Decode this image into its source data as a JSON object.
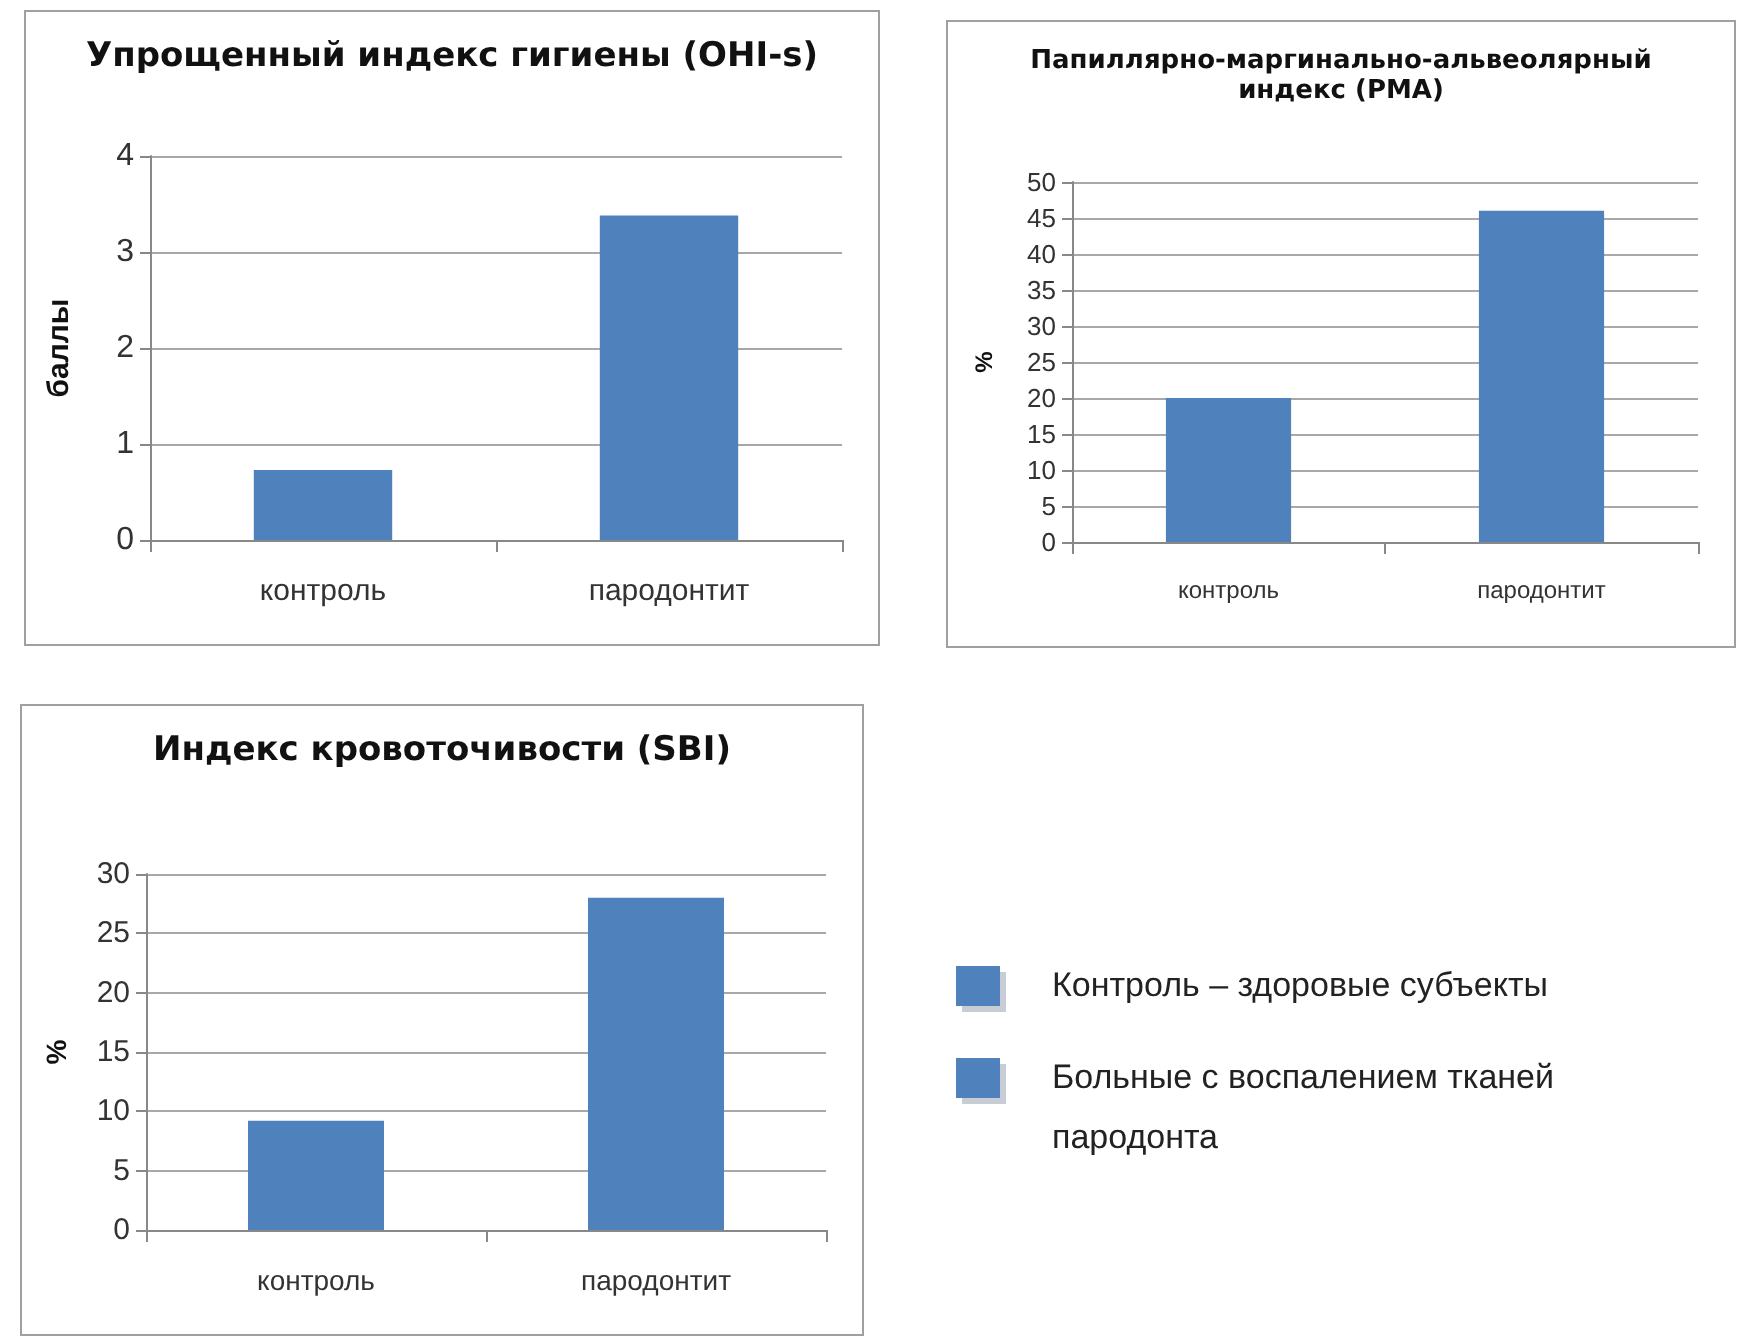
{
  "chart_data": [
    {
      "type": "bar",
      "title": "Упрощенный индекс гигиены (OHI-s)",
      "ylabel": "баллы",
      "categories": [
        "контроль",
        "пародонтит"
      ],
      "values": [
        0.73,
        3.38
      ],
      "color": "#4f81bd",
      "ylim": [
        0,
        4
      ],
      "yticks": [
        0,
        1,
        2,
        3,
        4
      ],
      "grid": "y"
    },
    {
      "type": "bar",
      "title": "Папиллярно-маргинально-альвеолярный индекс (PMA)",
      "ylabel": "%",
      "categories": [
        "контроль",
        "пародонтит"
      ],
      "values": [
        20,
        46
      ],
      "color": "#4f81bd",
      "ylim": [
        0,
        50
      ],
      "yticks": [
        0,
        5,
        10,
        15,
        20,
        25,
        30,
        35,
        40,
        45,
        50
      ],
      "grid": "y"
    },
    {
      "type": "bar",
      "title": "Индекс кровоточивости (SBI)",
      "ylabel": "%",
      "categories": [
        "контроль",
        "пародонтит"
      ],
      "values": [
        9.2,
        28
      ],
      "color": "#4f81bd",
      "ylim": [
        0,
        30
      ],
      "yticks": [
        0,
        5,
        10,
        15,
        20,
        25,
        30
      ],
      "grid": "y"
    },
    {
      "type": "other",
      "annotations": [
        "Контроль – здоровые субъекты",
        "Больные с воспалением тканей пародонта"
      ],
      "colors": [
        "#4f81bd",
        "#4f81bd"
      ]
    }
  ]
}
